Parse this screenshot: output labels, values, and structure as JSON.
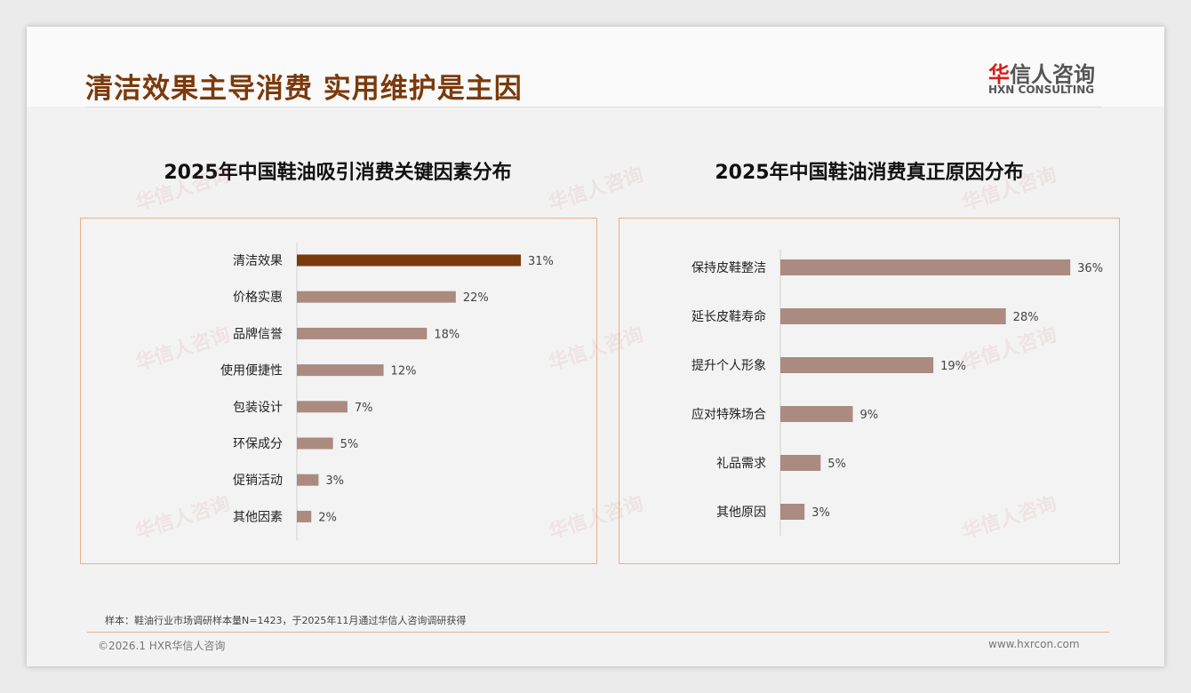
{
  "header": {
    "title": "清洁效果主导消费 实用维护是主因",
    "logo_cn_red": "华",
    "logo_cn": "信人咨询",
    "logo_en": "HXN CONSULTING"
  },
  "footer": {
    "note": "样本：鞋油行业市场调研样本量N=1423，于2025年11月通过华信人咨询调研获得",
    "copyright": "©2026.1 HXR华信人咨询",
    "url": "www.hxrcon.com"
  },
  "colors": {
    "highlight": "#7a3a0c",
    "bar": "#ab8b80",
    "title": "#7a3a0c"
  },
  "chart_data": [
    {
      "type": "bar",
      "orientation": "horizontal",
      "title": "2025年中国鞋油吸引消费关键因素分布",
      "categories": [
        "清洁效果",
        "价格实惠",
        "品牌信誉",
        "使用便捷性",
        "包装设计",
        "环保成分",
        "促销活动",
        "其他因素"
      ],
      "values": [
        31,
        22,
        18,
        12,
        7,
        5,
        3,
        2
      ],
      "unit": "%",
      "highlight_index": 0
    },
    {
      "type": "bar",
      "orientation": "horizontal",
      "title": "2025年中国鞋油消费真正原因分布",
      "categories": [
        "保持皮鞋整洁",
        "延长皮鞋寿命",
        "提升个人形象",
        "应对特殊场合",
        "礼品需求",
        "其他原因"
      ],
      "values": [
        36,
        28,
        19,
        9,
        5,
        3
      ],
      "unit": "%",
      "highlight_index": -1
    }
  ]
}
